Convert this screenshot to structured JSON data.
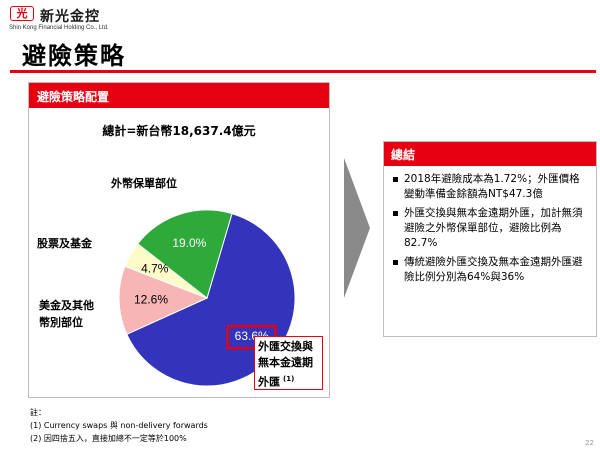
{
  "header": {
    "logo_mark": "光",
    "company_name": "新光金控",
    "company_english": "Shin Kong Financial Holding Co., Ltd.",
    "title": "避險策略"
  },
  "left_panel": {
    "title": "避險策略配置",
    "total": "總計=新台幣18,637.4億元"
  },
  "right_panel": {
    "title": "總結",
    "bullets": [
      "2018年避險成本為1.72%；外匯價格變動準備金餘額為NT$47.3億",
      "外匯交換與無本金遠期外匯，加計無須避險之外幣保單部位，避險比例為82.7%",
      "傳統避險外匯交換及無本金遠期外匯避險比例分別為64%與36%"
    ]
  },
  "notes": {
    "heading": "註：",
    "items": [
      "(1) Currency swaps 與 non-delivery forwards",
      "(2) 因四捨五入，直接加總不一定等於100%"
    ]
  },
  "page_number": "22",
  "chart_data": {
    "type": "pie",
    "title": "避險策略配置",
    "subtitle": "總計=新台幣18,637.4億元",
    "slices": [
      {
        "label": "外匯交換與無本金遠期外匯",
        "note": "(1)",
        "value": 63.6,
        "display": "63.6%",
        "color": "#3333bb",
        "highlight": true
      },
      {
        "label": "美金及其他幣別部位",
        "value": 12.6,
        "display": "12.6%",
        "color": "#f7b5b5"
      },
      {
        "label": "股票及基金",
        "value": 4.7,
        "display": "4.7%",
        "color": "#fdfcc8"
      },
      {
        "label": "外幣保單部位",
        "value": 19.0,
        "display": "19.0%",
        "color": "#2eaa3a"
      }
    ],
    "legend": "none",
    "label_colors": {
      "highlight_border": "#e60012"
    }
  }
}
